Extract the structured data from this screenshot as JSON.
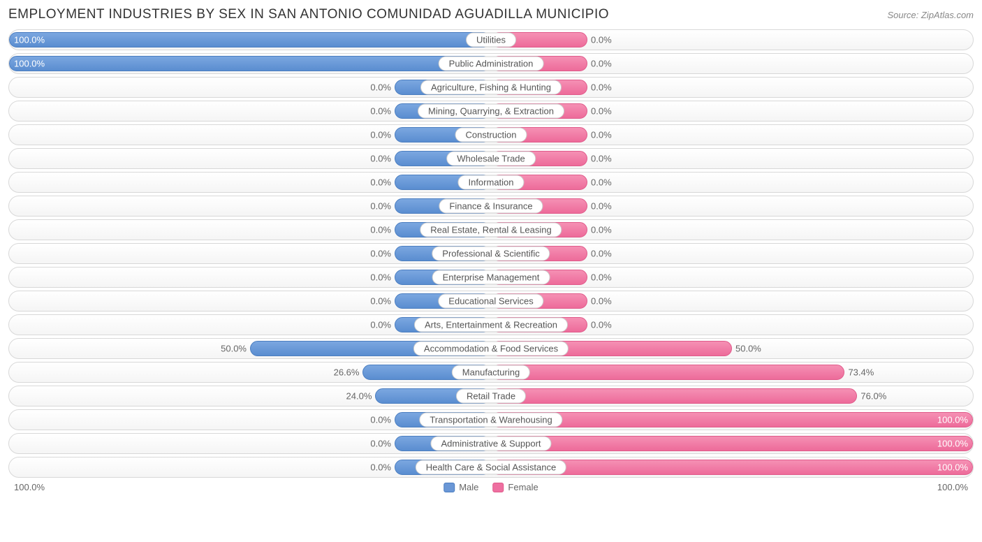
{
  "title": "EMPLOYMENT INDUSTRIES BY SEX IN SAN ANTONIO COMUNIDAD AGUADILLA MUNICIPIO",
  "source": "Source: ZipAtlas.com",
  "colors": {
    "male_bar_top": "#7ba7e0",
    "male_bar_bottom": "#5a8dd0",
    "male_border": "#4a7dc0",
    "female_bar_top": "#f590b4",
    "female_bar_bottom": "#ed6b9a",
    "female_border": "#e05a8a",
    "row_border": "#d8d8d8",
    "row_bg_top": "#ffffff",
    "row_bg_bottom": "#f5f5f5",
    "text": "#666666",
    "title_text": "#333333",
    "source_text": "#888888",
    "label_bg": "#ffffff",
    "label_border": "#cccccc"
  },
  "typography": {
    "title_fontsize": 19,
    "label_fontsize": 13,
    "source_fontsize": 13
  },
  "chart": {
    "type": "diverging-bar",
    "min_bar_pct": 20,
    "axis_left": "100.0%",
    "axis_right": "100.0%",
    "legend": {
      "male": "Male",
      "female": "Female"
    },
    "rows": [
      {
        "category": "Utilities",
        "male": 100.0,
        "female": 0.0
      },
      {
        "category": "Public Administration",
        "male": 100.0,
        "female": 0.0
      },
      {
        "category": "Agriculture, Fishing & Hunting",
        "male": 0.0,
        "female": 0.0
      },
      {
        "category": "Mining, Quarrying, & Extraction",
        "male": 0.0,
        "female": 0.0
      },
      {
        "category": "Construction",
        "male": 0.0,
        "female": 0.0
      },
      {
        "category": "Wholesale Trade",
        "male": 0.0,
        "female": 0.0
      },
      {
        "category": "Information",
        "male": 0.0,
        "female": 0.0
      },
      {
        "category": "Finance & Insurance",
        "male": 0.0,
        "female": 0.0
      },
      {
        "category": "Real Estate, Rental & Leasing",
        "male": 0.0,
        "female": 0.0
      },
      {
        "category": "Professional & Scientific",
        "male": 0.0,
        "female": 0.0
      },
      {
        "category": "Enterprise Management",
        "male": 0.0,
        "female": 0.0
      },
      {
        "category": "Educational Services",
        "male": 0.0,
        "female": 0.0
      },
      {
        "category": "Arts, Entertainment & Recreation",
        "male": 0.0,
        "female": 0.0
      },
      {
        "category": "Accommodation & Food Services",
        "male": 50.0,
        "female": 50.0
      },
      {
        "category": "Manufacturing",
        "male": 26.6,
        "female": 73.4
      },
      {
        "category": "Retail Trade",
        "male": 24.0,
        "female": 76.0
      },
      {
        "category": "Transportation & Warehousing",
        "male": 0.0,
        "female": 100.0
      },
      {
        "category": "Administrative & Support",
        "male": 0.0,
        "female": 100.0
      },
      {
        "category": "Health Care & Social Assistance",
        "male": 0.0,
        "female": 100.0
      }
    ]
  }
}
